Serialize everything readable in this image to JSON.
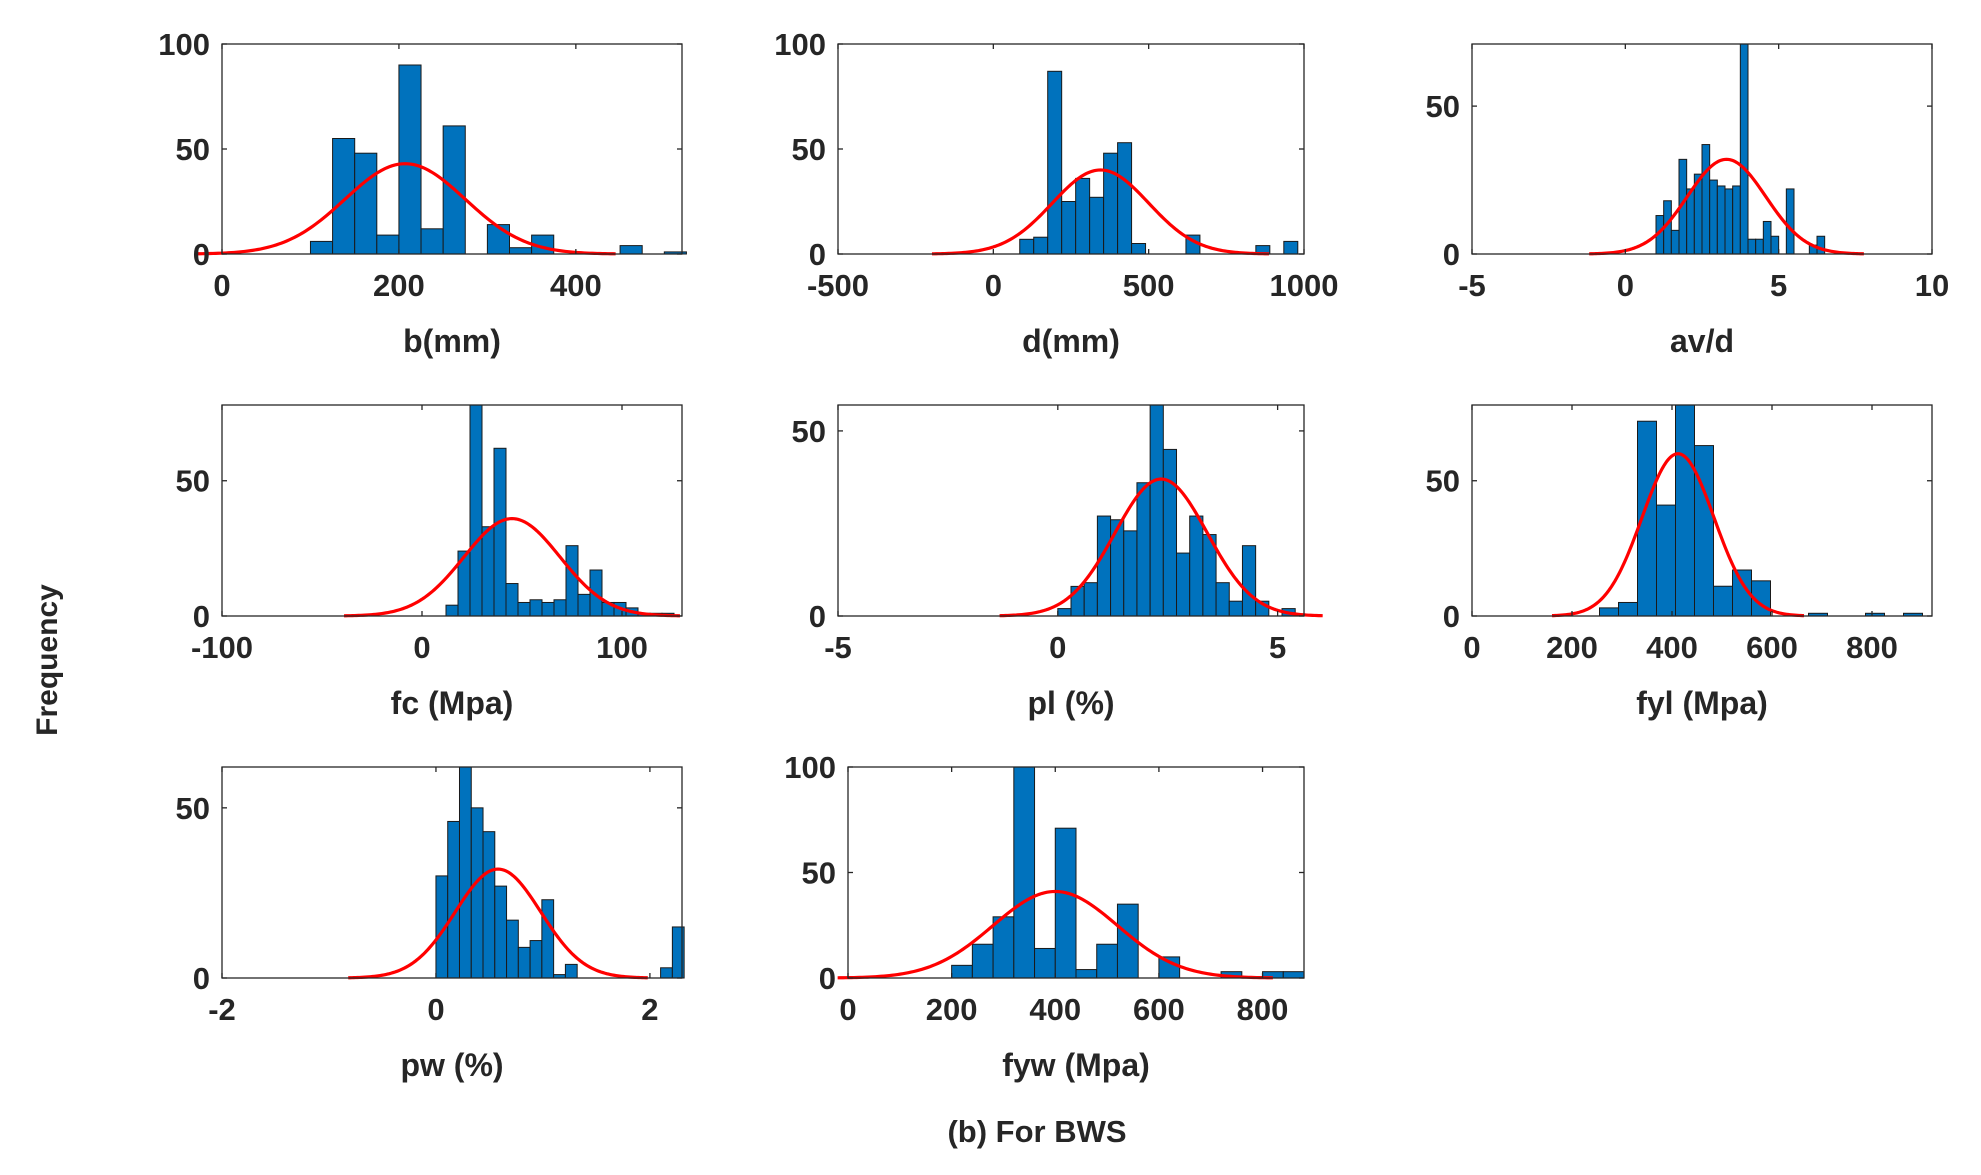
{
  "figure": {
    "ylabel": "Frequency",
    "caption": "(b) For BWS",
    "bar_color": "#0072BD",
    "bar_edge_color": "#1a1a1a",
    "fit_color": "#FF0000",
    "axis_color": "#262626"
  },
  "chart_data": [
    {
      "type": "bar",
      "subtype": "histogram_with_normal_fit",
      "xlabel": "b(mm)",
      "ylabel": "Frequency",
      "xlim": [
        0,
        520
      ],
      "ylim": [
        0,
        100
      ],
      "xticks": [
        0,
        200,
        400
      ],
      "yticks": [
        0,
        50,
        100
      ],
      "bin_width": 25,
      "bin_starts": [
        100,
        125,
        150,
        175,
        200,
        225,
        250,
        275,
        300,
        325,
        350,
        375,
        450,
        475,
        500
      ],
      "values": [
        6,
        55,
        48,
        9,
        90,
        12,
        61,
        0,
        14,
        3,
        9,
        0,
        4,
        0,
        1
      ],
      "fit": {
        "mean": 207,
        "std": 68,
        "peak": 43
      }
    },
    {
      "type": "bar",
      "subtype": "histogram_with_normal_fit",
      "xlabel": "d(mm)",
      "ylabel": "Frequency",
      "xlim": [
        -500,
        1000
      ],
      "ylim": [
        0,
        100
      ],
      "xticks": [
        -500,
        0,
        500,
        1000
      ],
      "yticks": [
        0,
        50,
        100
      ],
      "bin_width": 45,
      "bin_starts": [
        85,
        130,
        175,
        220,
        265,
        310,
        355,
        400,
        445,
        490,
        620,
        845,
        935
      ],
      "values": [
        7,
        8,
        87,
        25,
        36,
        27,
        48,
        53,
        5,
        0,
        9,
        4,
        6
      ],
      "fit": {
        "mean": 345,
        "std": 155,
        "peak": 40
      }
    },
    {
      "type": "bar",
      "subtype": "histogram_with_normal_fit",
      "xlabel": "av/d",
      "ylabel": "Frequency",
      "xlim": [
        -5,
        10
      ],
      "ylim": [
        0,
        71
      ],
      "xticks": [
        -5,
        0,
        5,
        10
      ],
      "yticks": [
        0,
        50
      ],
      "bin_width": 0.25,
      "bin_starts": [
        1.0,
        1.25,
        1.5,
        1.75,
        2.0,
        2.25,
        2.5,
        2.75,
        3.0,
        3.25,
        3.5,
        3.75,
        4.0,
        4.25,
        4.5,
        4.75,
        5.0,
        5.25,
        5.5,
        5.75,
        6.0,
        6.25,
        6.5,
        6.75
      ],
      "values": [
        13,
        18,
        8,
        32,
        22,
        27,
        37,
        25,
        23,
        22,
        23,
        71,
        5,
        5,
        11,
        6,
        0,
        22,
        0,
        0,
        3,
        6,
        0,
        0
      ],
      "fit": {
        "mean": 3.3,
        "std": 1.28,
        "peak": 32
      }
    },
    {
      "type": "bar",
      "subtype": "histogram_with_normal_fit",
      "xlabel": "fc (Mpa)",
      "ylabel": "Frequency",
      "xlim": [
        -100,
        130
      ],
      "ylim": [
        0,
        78
      ],
      "xticks": [
        -100,
        0,
        100
      ],
      "yticks": [
        0,
        50
      ],
      "bin_width": 6,
      "bin_starts": [
        12,
        18,
        24,
        30,
        36,
        42,
        48,
        54,
        60,
        66,
        72,
        78,
        84,
        90,
        96,
        102,
        108,
        114,
        120
      ],
      "values": [
        4,
        24,
        78,
        33,
        62,
        12,
        5,
        6,
        5,
        6,
        26,
        8,
        17,
        5,
        5,
        3,
        1,
        1,
        1
      ],
      "fit": {
        "mean": 45,
        "std": 24,
        "peak": 36
      }
    },
    {
      "type": "bar",
      "subtype": "histogram_with_normal_fit",
      "xlabel": "pl (%)",
      "ylabel": "Frequency",
      "xlim": [
        -5,
        5.6
      ],
      "ylim": [
        0,
        57
      ],
      "xticks": [
        -5,
        0,
        5
      ],
      "yticks": [
        0,
        50
      ],
      "bin_width": 0.3,
      "bin_starts": [
        0.0,
        0.3,
        0.6,
        0.9,
        1.2,
        1.5,
        1.8,
        2.1,
        2.4,
        2.7,
        3.0,
        3.3,
        3.6,
        3.9,
        4.2,
        4.5,
        4.8,
        5.1
      ],
      "values": [
        2,
        8,
        9,
        27,
        26,
        23,
        36,
        57,
        45,
        17,
        27,
        22,
        9,
        4,
        19,
        4,
        0,
        2
      ],
      "fit": {
        "mean": 2.35,
        "std": 1.05,
        "peak": 37
      }
    },
    {
      "type": "bar",
      "subtype": "histogram_with_normal_fit",
      "xlabel": "fyl (Mpa)",
      "ylabel": "Frequency",
      "xlim": [
        0,
        920
      ],
      "ylim": [
        0,
        78
      ],
      "xticks": [
        0,
        200,
        400,
        600,
        800
      ],
      "yticks": [
        0,
        50
      ],
      "bin_width": 38,
      "bin_starts": [
        255,
        293,
        331,
        369,
        407,
        445,
        483,
        521,
        559,
        673,
        787,
        863
      ],
      "values": [
        3,
        5,
        72,
        41,
        78,
        63,
        11,
        17,
        13,
        1,
        1,
        1
      ],
      "fit": {
        "mean": 412,
        "std": 72,
        "peak": 60
      }
    },
    {
      "type": "bar",
      "subtype": "histogram_with_normal_fit",
      "xlabel": "pw (%)",
      "ylabel": "Frequency",
      "xlim": [
        -2,
        2.3
      ],
      "ylim": [
        0,
        62
      ],
      "xticks": [
        -2,
        0,
        2
      ],
      "yticks": [
        0,
        50
      ],
      "bin_width": 0.11,
      "bin_starts": [
        0.0,
        0.11,
        0.22,
        0.33,
        0.44,
        0.55,
        0.66,
        0.77,
        0.88,
        0.99,
        1.1,
        1.21,
        2.1,
        2.21
      ],
      "values": [
        30,
        46,
        62,
        50,
        43,
        27,
        17,
        9,
        11,
        23,
        1,
        4,
        3,
        15
      ],
      "fit": {
        "mean": 0.58,
        "std": 0.4,
        "peak": 32
      }
    },
    {
      "type": "bar",
      "subtype": "histogram_with_normal_fit",
      "xlabel": "fyw (Mpa)",
      "ylabel": "Frequency",
      "xlim": [
        0,
        880
      ],
      "ylim": [
        0,
        100
      ],
      "xticks": [
        0,
        200,
        400,
        600,
        800
      ],
      "yticks": [
        0,
        50,
        100
      ],
      "bin_width": 40,
      "bin_starts": [
        200,
        240,
        280,
        320,
        360,
        400,
        440,
        480,
        520,
        560,
        600,
        680,
        720,
        760,
        800,
        840
      ],
      "values": [
        6,
        16,
        29,
        100,
        14,
        71,
        4,
        16,
        35,
        0,
        10,
        0,
        3,
        0,
        3,
        3
      ],
      "fit": {
        "mean": 400,
        "std": 120,
        "peak": 41
      }
    }
  ]
}
